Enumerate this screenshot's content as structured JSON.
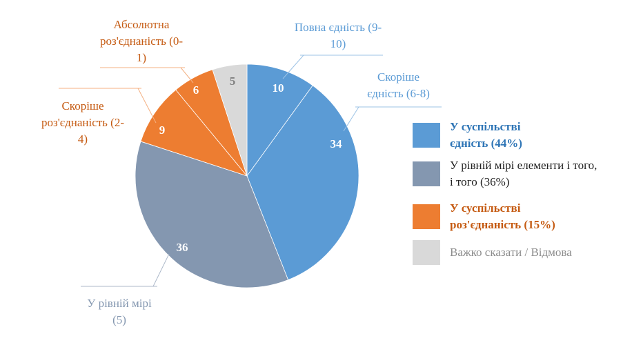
{
  "chart_data": {
    "type": "pie",
    "title": "",
    "slices": [
      {
        "label": "Повна єдність (9-10)",
        "value": 10,
        "color": "#5b9bd5",
        "label_color": "#5b9bd5"
      },
      {
        "label": "Скоріше єдність (6-8)",
        "value": 34,
        "color": "#5b9bd5",
        "label_color": "#5b9bd5"
      },
      {
        "label": "У рівній мірі (5)",
        "value": 36,
        "color": "#8497b0",
        "label_color": "#8497b0"
      },
      {
        "label": "Скоріше роз'єднаність (2-4)",
        "value": 9,
        "color": "#ed7d31",
        "label_color": "#c55a11"
      },
      {
        "label": "Абсолютна роз'єднаність (0-1)",
        "value": 6,
        "color": "#ed7d31",
        "label_color": "#c55a11"
      },
      {
        "label": "",
        "value": 5,
        "color": "#d9d9d9",
        "label_color": "#7f7f7f"
      }
    ],
    "legend": [
      {
        "label": "У суспільстві єдність (44%)",
        "color": "#5b9bd5",
        "text_color": "#2e75b6",
        "bold": true
      },
      {
        "label": "У рівній мірі елементи і того, і того (36%)",
        "color": "#8497b0",
        "text_color": "#222222",
        "bold": false
      },
      {
        "label": "У суспільстві роз'єднаність (15%)",
        "color": "#ed7d31",
        "text_color": "#c55a11",
        "bold": true
      },
      {
        "label": "Важко сказати / Відмова",
        "color": "#d9d9d9",
        "text_color": "#8c8c8c",
        "bold": false
      }
    ],
    "legend_position": "right"
  }
}
